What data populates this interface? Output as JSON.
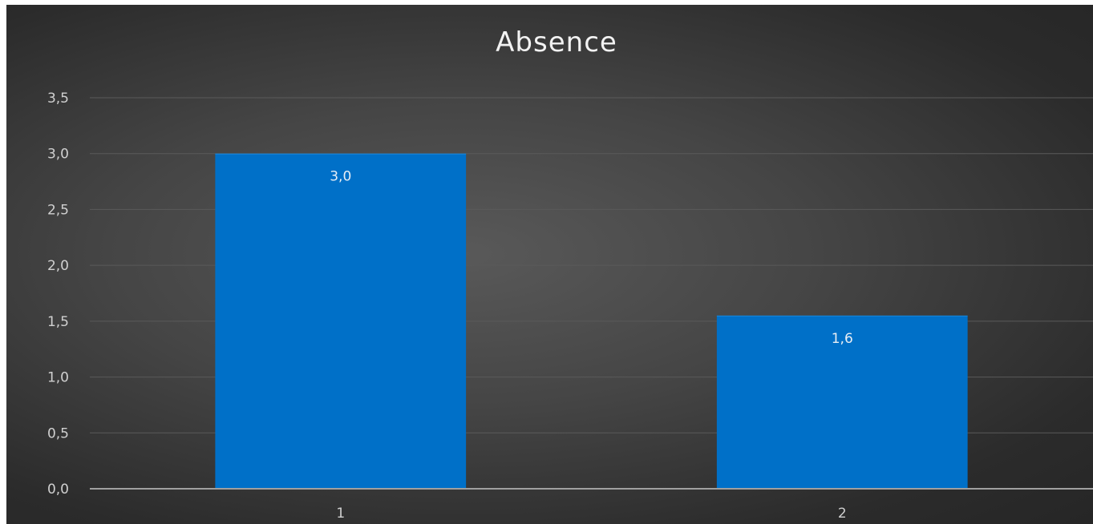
{
  "chart_data": {
    "type": "bar",
    "title": "Absence",
    "xlabel": "",
    "ylabel": "",
    "categories": [
      "1",
      "2"
    ],
    "values": [
      3.0,
      1.55
    ],
    "data_labels": [
      "3,0",
      "1,6"
    ],
    "ylim": [
      0,
      3.5
    ],
    "y_ticks": [
      0,
      0.5,
      1.0,
      1.5,
      2.0,
      2.5,
      3.0,
      3.5
    ],
    "y_tick_labels": [
      "0,0",
      "0,5",
      "1,0",
      "1,5",
      "2,0",
      "2,5",
      "3,0",
      "3,5"
    ],
    "grid": true,
    "legend": "none",
    "colors": {
      "bar": "#0070c8",
      "bar_top": "#1a86d8",
      "gridline": "#5a5a5a",
      "axis": "#a0a0a0",
      "text": "#d0d0d0"
    }
  }
}
